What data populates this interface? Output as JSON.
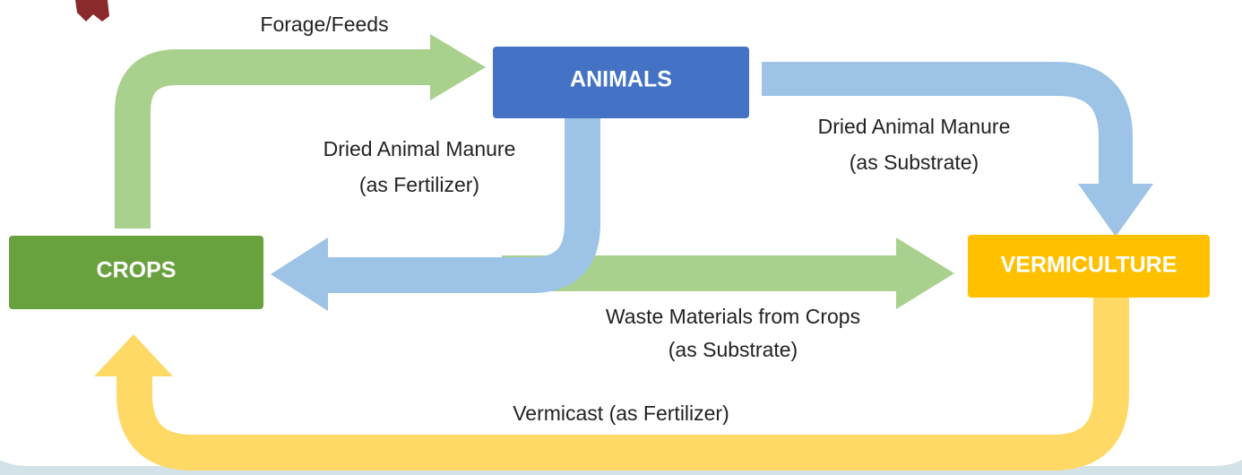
{
  "nodes": [
    {
      "label": "ANIMALS"
    },
    {
      "label": "CROPS"
    },
    {
      "label": "VERMICULTURE"
    }
  ],
  "edges": [
    {
      "label": [
        "Forage/Feeds"
      ]
    },
    {
      "label": [
        "Dried Animal Manure",
        "(as Fertilizer)"
      ]
    },
    {
      "label": [
        "Dried Animal Manure",
        "(as Substrate)"
      ]
    },
    {
      "label": [
        "Waste Materials from Crops",
        "(as Substrate)"
      ]
    },
    {
      "label": [
        "Vermicast (as Fertilizer)"
      ]
    }
  ]
}
